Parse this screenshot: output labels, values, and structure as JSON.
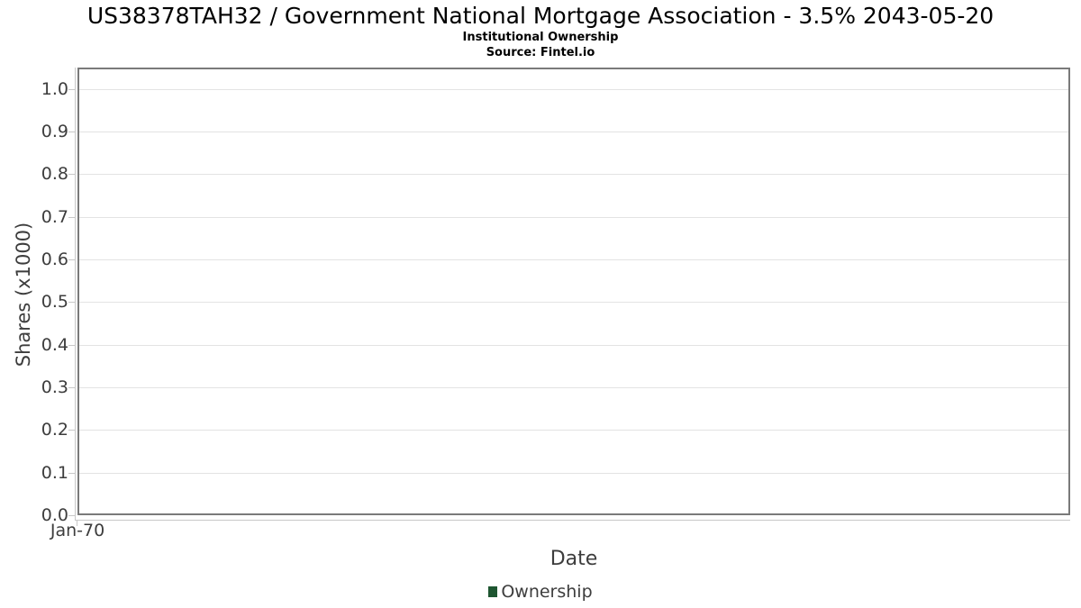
{
  "header": {
    "title": "US38378TAH32 / Government National Mortgage Association - 3.5% 2043-05-20",
    "subtitle": "Institutional Ownership",
    "source": "Source: Fintel.io"
  },
  "chart_data": {
    "type": "line",
    "title": "US38378TAH32 / Government National Mortgage Association - 3.5% 2043-05-20",
    "subtitle": "Institutional Ownership",
    "source": "Source: Fintel.io",
    "xlabel": "Date",
    "ylabel": "Shares (x1000)",
    "x_tick_labels": [
      "Jan-70"
    ],
    "y_tick_labels": [
      "0.0",
      "0.1",
      "0.2",
      "0.3",
      "0.4",
      "0.5",
      "0.6",
      "0.7",
      "0.8",
      "0.9",
      "1.0"
    ],
    "ylim": [
      0,
      1.05
    ],
    "grid": true,
    "legend_position": "bottom",
    "series": [
      {
        "name": "Ownership",
        "color": "#1e5631",
        "x": [],
        "values": []
      }
    ]
  },
  "colors": {
    "legend_swatch": "#1e5631",
    "axis_text": "#3d3d3d",
    "plot_border": "#7a7a7a",
    "gridline": "#e3e3e3"
  }
}
